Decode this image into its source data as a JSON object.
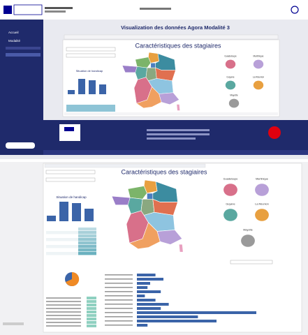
{
  "sidebar": {
    "items": [
      "Accueil",
      "Modalité"
    ]
  },
  "page": {
    "title": "Visualization des données Agora Modalité 3"
  },
  "dashboard": {
    "title": "Caractéristiques des stagiaires",
    "handicap_title": "Situation de handicap",
    "territories": [
      "Guadeloupe",
      "Martinique",
      "Guyane",
      "La Réunion",
      "Mayotte"
    ]
  },
  "zoom": {
    "title": "Caractéristiques des stagiaires",
    "handicap_title": "Situation de handicap",
    "territories": [
      "Guadeloupe",
      "Martinique",
      "Guyane",
      "La Réunion",
      "Mayotte"
    ]
  }
}
